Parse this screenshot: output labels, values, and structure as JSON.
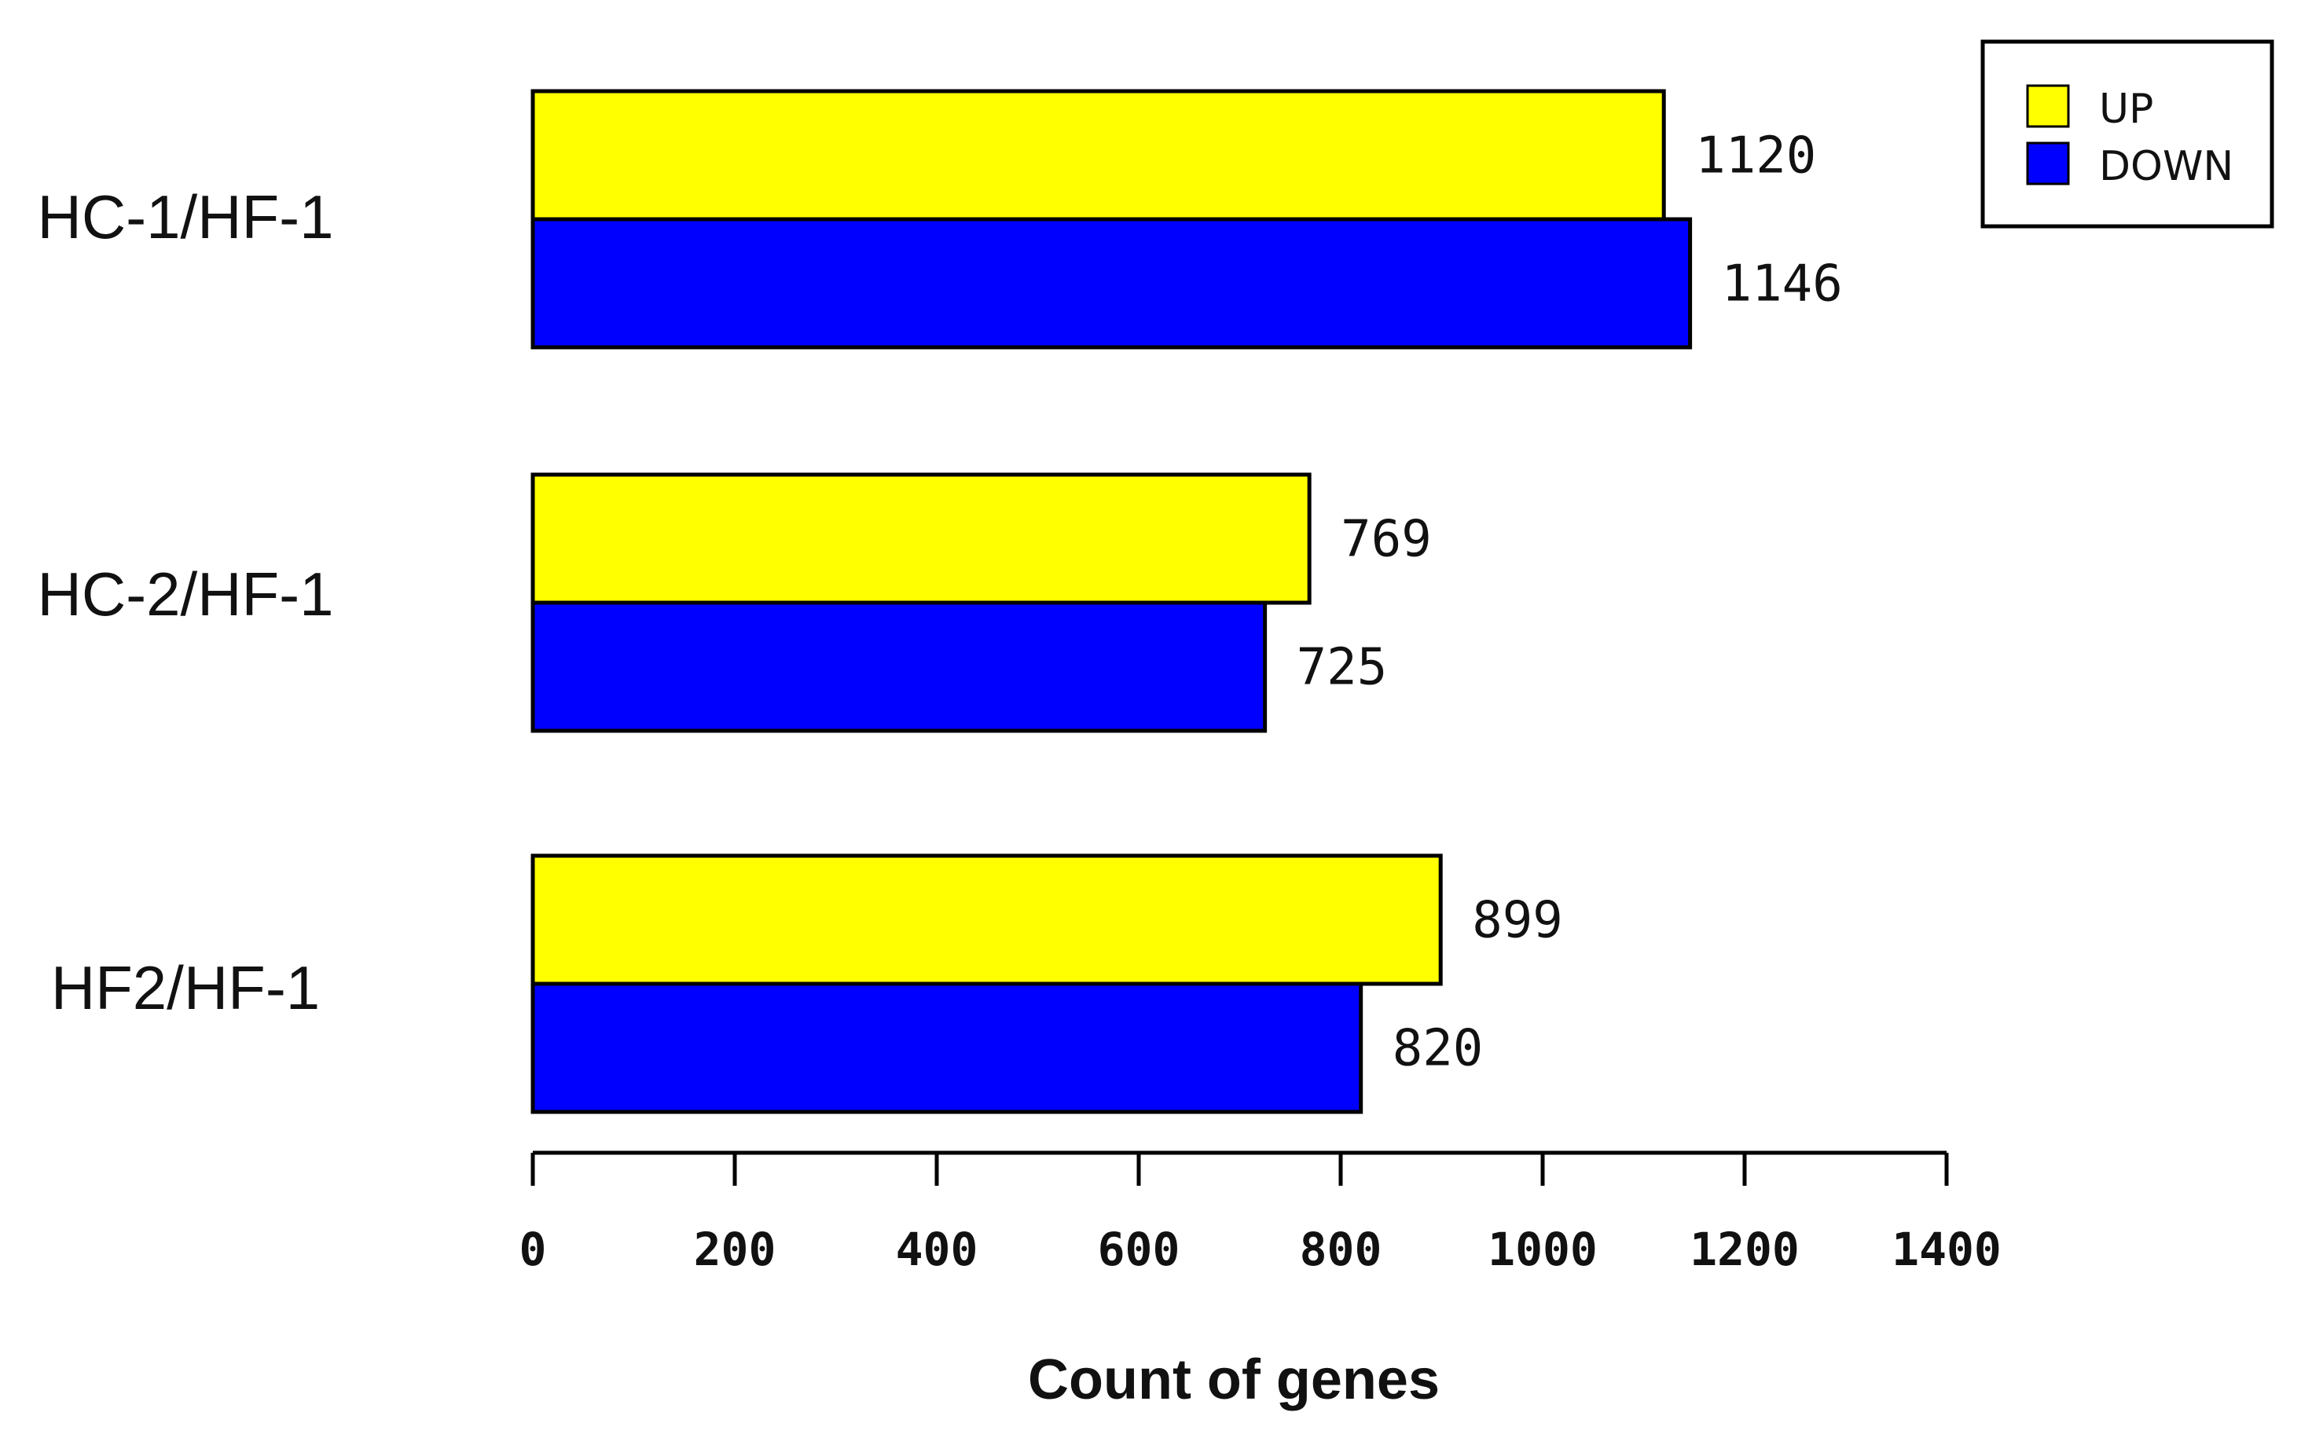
{
  "chart_data": {
    "type": "bar",
    "orientation": "horizontal",
    "categories": [
      "HC-1/HF-1",
      "HC-2/HF-1",
      "HF2/HF-1"
    ],
    "series": [
      {
        "name": "UP",
        "color": "#ffff00",
        "values": [
          1120,
          769,
          899
        ]
      },
      {
        "name": "DOWN",
        "color": "#0000ff",
        "values": [
          1146,
          725,
          820
        ]
      }
    ],
    "xlabel": "Count of genes",
    "ylabel": "",
    "xlim": [
      0,
      1400
    ],
    "xticks": [
      "0",
      "200",
      "400",
      "600",
      "800",
      "1000",
      "1200",
      "1400"
    ],
    "data_labels": [
      [
        "1120",
        "1146"
      ],
      [
        "769",
        "725"
      ],
      [
        "899",
        "820"
      ]
    ],
    "legend": {
      "position": "top-right",
      "entries": [
        "UP",
        "DOWN"
      ]
    },
    "grid": false
  }
}
